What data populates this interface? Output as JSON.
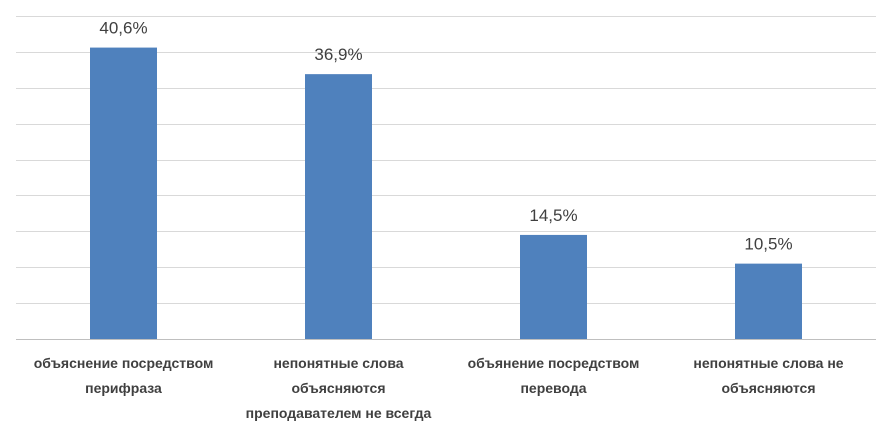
{
  "chart_data": {
    "type": "bar",
    "categories": [
      [
        "объяснение посредством",
        "перифраза"
      ],
      [
        "непонятные слова",
        "объясняются",
        "преподавателем не всегда"
      ],
      [
        "объянение посредством",
        "перевода"
      ],
      [
        "непонятные слова не",
        "объясняются"
      ]
    ],
    "values": [
      40.6,
      36.9,
      14.5,
      10.5
    ],
    "data_labels": [
      "40,6%",
      "36,9%",
      "14,5%",
      "10,5%"
    ],
    "unit": "%",
    "ylim": [
      0,
      45
    ],
    "grid_step": 5,
    "grid": true,
    "legend": "none",
    "colors": {
      "bar": "#4f81bd",
      "grid": "#d9d9d9",
      "text": "#404040"
    }
  }
}
